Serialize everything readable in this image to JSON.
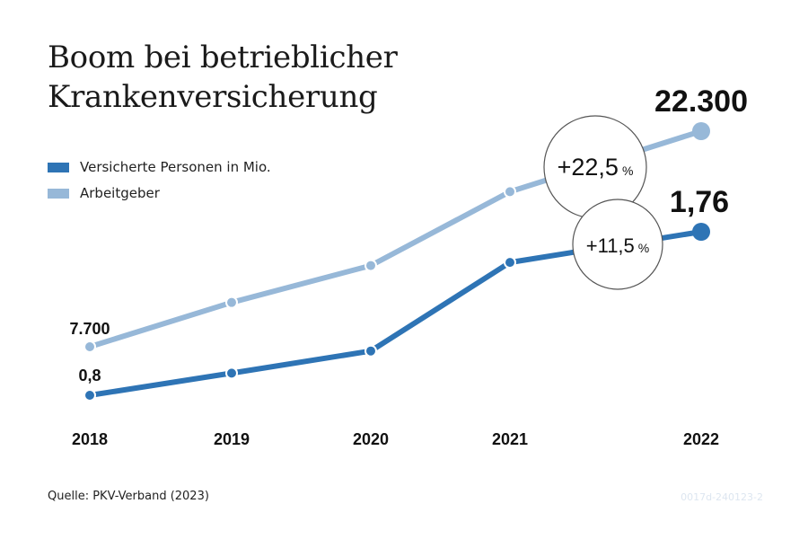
{
  "title_lines": [
    "Boom bei betrieblicher",
    "Krankenversicherung"
  ],
  "colors": {
    "dark_blue": "#2e74b5",
    "light_blue": "#97b8d8",
    "text": "#111111"
  },
  "chart_data": {
    "type": "line",
    "categories": [
      "2018",
      "2019",
      "2020",
      "2021",
      "2022"
    ],
    "series": [
      {
        "name": "Versicherte Personen in Mio.",
        "color": "#2e74b5",
        "values": [
          0.8,
          0.93,
          1.06,
          1.58,
          1.76
        ]
      },
      {
        "name": "Arbeitgeber",
        "values": [
          7700,
          10700,
          13200,
          18200,
          22300
        ],
        "color": "#97b8d8"
      }
    ],
    "data_labels": {
      "start_dark": "0,8",
      "start_light": "7.700",
      "end_dark": "1,76",
      "end_light": "22.300"
    },
    "annotations": {
      "light_growth": {
        "value": "+22,5",
        "unit": "%"
      },
      "dark_growth": {
        "value": "+11,5",
        "unit": "%"
      }
    }
  },
  "source": "Quelle: PKV-Verband (2023)",
  "code": "0017d-240123-2"
}
